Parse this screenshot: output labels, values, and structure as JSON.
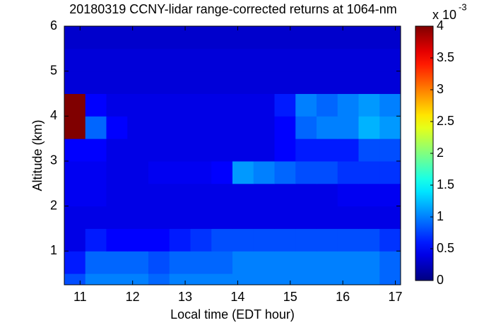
{
  "chart_data": {
    "type": "heatmap",
    "title": "20180319 CCNY-lidar range-corrected returns at 1064-nm",
    "x_label": "Local time (EDT hour)",
    "y_label": "Altitude (km)",
    "xlim": [
      10.7,
      17.1
    ],
    "xticks": [
      11,
      12,
      13,
      14,
      15,
      16,
      17
    ],
    "ylim": [
      0.25,
      6
    ],
    "yticks": [
      1,
      2,
      3,
      4,
      5,
      6
    ],
    "x_edges": [
      10.7,
      11.1,
      11.5,
      11.9,
      12.3,
      12.7,
      13.1,
      13.5,
      13.9,
      14.3,
      14.7,
      15.1,
      15.5,
      15.9,
      16.3,
      16.7,
      17.1
    ],
    "y_edges": [
      0.25,
      0.5,
      1,
      1.5,
      2,
      2.5,
      3,
      3.5,
      4,
      4.5,
      5,
      5.5,
      6
    ],
    "z": [
      [
        0.8,
        1.0,
        1.0,
        1.0,
        0.9,
        1.0,
        1.0,
        1.0,
        1.0,
        1.0,
        1.0,
        1.0,
        1.0,
        1.0,
        1.0,
        0.9
      ],
      [
        0.6,
        0.9,
        0.9,
        0.9,
        0.8,
        0.9,
        0.9,
        0.9,
        1.0,
        1.0,
        1.0,
        1.0,
        1.0,
        1.0,
        1.0,
        0.9
      ],
      [
        0.4,
        0.6,
        0.5,
        0.5,
        0.5,
        0.6,
        0.7,
        0.8,
        0.8,
        0.8,
        0.8,
        0.8,
        0.8,
        0.8,
        0.8,
        0.7
      ],
      [
        0.4,
        0.4,
        0.4,
        0.4,
        0.4,
        0.4,
        0.4,
        0.4,
        0.4,
        0.4,
        0.4,
        0.4,
        0.4,
        0.4,
        0.4,
        0.4
      ],
      [
        0.45,
        0.45,
        0.4,
        0.4,
        0.4,
        0.4,
        0.4,
        0.4,
        0.4,
        0.4,
        0.4,
        0.4,
        0.4,
        0.45,
        0.45,
        0.45
      ],
      [
        0.45,
        0.45,
        0.4,
        0.4,
        0.45,
        0.45,
        0.45,
        0.5,
        1.1,
        1.0,
        0.9,
        0.8,
        0.8,
        0.7,
        0.7,
        0.7
      ],
      [
        0.5,
        0.5,
        0.4,
        0.4,
        0.4,
        0.4,
        0.4,
        0.4,
        0.4,
        0.4,
        0.5,
        0.6,
        0.6,
        0.6,
        0.8,
        0.8
      ],
      [
        4,
        0.9,
        0.5,
        0.4,
        0.4,
        0.4,
        0.4,
        0.4,
        0.4,
        0.4,
        0.5,
        0.9,
        1.0,
        1.0,
        1.2,
        1.1
      ],
      [
        4,
        0.5,
        0.4,
        0.4,
        0.4,
        0.4,
        0.4,
        0.4,
        0.4,
        0.4,
        0.6,
        1.0,
        0.9,
        1.0,
        1.1,
        1.0
      ],
      [
        0.35,
        0.35,
        0.35,
        0.35,
        0.35,
        0.35,
        0.35,
        0.35,
        0.35,
        0.35,
        0.35,
        0.35,
        0.35,
        0.35,
        0.35,
        0.35
      ],
      [
        0.35,
        0.35,
        0.35,
        0.35,
        0.35,
        0.35,
        0.35,
        0.35,
        0.35,
        0.35,
        0.35,
        0.35,
        0.35,
        0.35,
        0.35,
        0.35
      ],
      [
        0.3,
        0.3,
        0.3,
        0.3,
        0.3,
        0.3,
        0.3,
        0.3,
        0.3,
        0.3,
        0.3,
        0.3,
        0.3,
        0.3,
        0.3,
        0.3
      ]
    ],
    "colormap": "jet",
    "zlim": [
      0,
      4
    ],
    "zticks": [
      0,
      0.5,
      1,
      1.5,
      2,
      2.5,
      3,
      3.5,
      4
    ],
    "colorbar_label": "x 10",
    "colorbar_exponent": "-3"
  }
}
